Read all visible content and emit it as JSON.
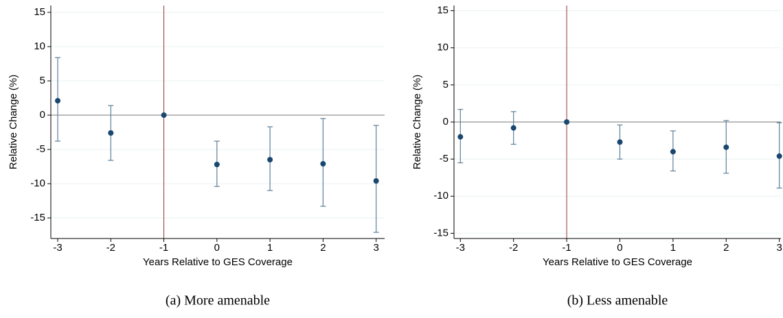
{
  "chart_data": [
    {
      "type": "errorbar",
      "caption": "(a)  More amenable",
      "xlabel": "Years Relative to GES Coverage",
      "ylabel": "Relative Change (%)",
      "x": [
        -3,
        -2,
        -1,
        0,
        1,
        2,
        3
      ],
      "series": [
        {
          "color": "#1a476f",
          "values": [
            2.1,
            -2.6,
            0,
            -7.2,
            -6.5,
            -7.1,
            -9.6
          ],
          "lower": [
            -3.8,
            -6.6,
            null,
            -10.4,
            -11.0,
            -13.3,
            -17.1
          ],
          "upper": [
            8.4,
            1.4,
            null,
            -3.8,
            -1.7,
            -0.5,
            -1.5
          ]
        }
      ],
      "xlim": [
        -3.13,
        3.16
      ],
      "ylim": [
        -18,
        16
      ],
      "xticks": [
        -3,
        -2,
        -1,
        0,
        1,
        2,
        3
      ],
      "yticks": [
        -15,
        -10,
        -5,
        0,
        5,
        10,
        15
      ],
      "grid": true,
      "vline": -1,
      "vline_color": "#90353b",
      "hline": 0
    },
    {
      "type": "errorbar",
      "caption": "(b)  Less amenable",
      "xlabel": "Years Relative to GES Coverage",
      "ylabel": "Relative Change (%)",
      "x": [
        -3,
        -2,
        -1,
        0,
        1,
        2,
        3
      ],
      "series": [
        {
          "color": "#1a476f",
          "values": [
            -2.0,
            -0.8,
            0,
            -2.7,
            -4.0,
            -3.4,
            -4.6
          ],
          "lower": [
            -5.5,
            -3.0,
            null,
            -5.0,
            -6.6,
            -6.9,
            -8.9
          ],
          "upper": [
            1.7,
            1.4,
            null,
            -0.4,
            -1.2,
            0.2,
            -0.1
          ]
        }
      ],
      "xlim": [
        -3.12,
        3.03
      ],
      "ylim": [
        -15.7,
        15.7
      ],
      "xticks": [
        -3,
        -2,
        -1,
        0,
        1,
        2,
        3
      ],
      "yticks": [
        -15,
        -10,
        -5,
        0,
        5,
        10,
        15
      ],
      "grid": true,
      "vline": -1,
      "vline_color": "#90353b",
      "hline": 0
    }
  ]
}
